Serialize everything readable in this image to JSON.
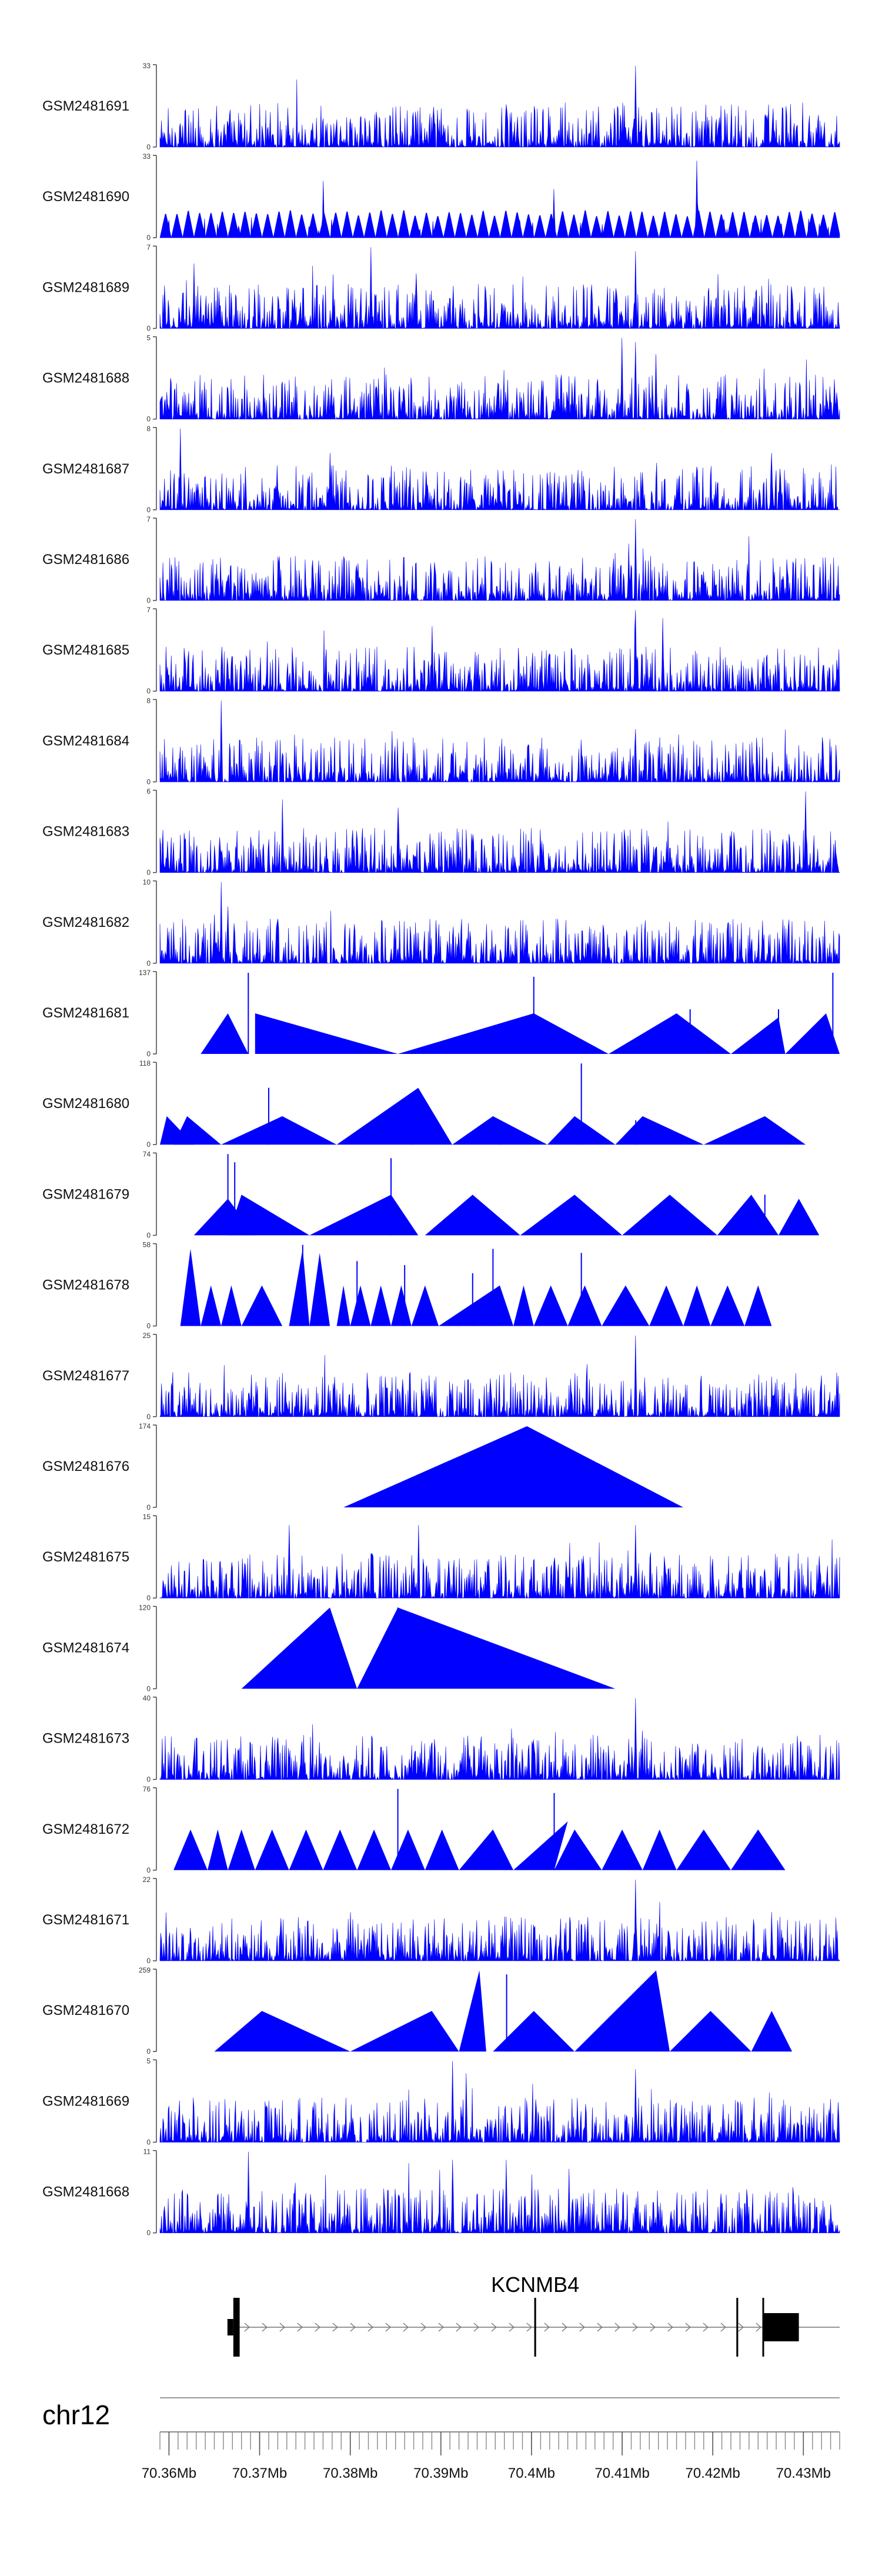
{
  "chart_data": {
    "type": "area",
    "colors": {
      "signal": "#0000ff",
      "axis": "#444444",
      "gene": "#000000",
      "genome_line": "#999999"
    },
    "tracks": [
      {
        "name": "GSM2481691",
        "ymax": "33",
        "ymin": "0",
        "style": "dense",
        "peaks": [
          [
            0.28,
            0.35
          ],
          [
            0.7,
            1.0
          ],
          [
            0.47,
            0.12
          ]
        ]
      },
      {
        "name": "GSM2481690",
        "ymax": "33",
        "ymin": "0",
        "style": "triangles",
        "n": 60,
        "peaks": [
          [
            0.79,
            0.95
          ],
          [
            0.24,
            0.7
          ],
          [
            0.58,
            0.6
          ]
        ]
      },
      {
        "name": "GSM2481689",
        "ymax": "7",
        "ymin": "0",
        "style": "dense",
        "peaks": [
          [
            0.31,
            1.0
          ],
          [
            0.7,
            0.95
          ],
          [
            0.05,
            0.8
          ]
        ]
      },
      {
        "name": "GSM2481688",
        "ymax": "5",
        "ymin": "0",
        "style": "dense",
        "peaks": [
          [
            0.68,
            1.0
          ],
          [
            0.7,
            0.95
          ],
          [
            0.73,
            0.8
          ]
        ]
      },
      {
        "name": "GSM2481687",
        "ymax": "8",
        "ymin": "0",
        "style": "dense",
        "peaks": [
          [
            0.03,
            1.0
          ],
          [
            0.25,
            0.7
          ],
          [
            0.9,
            0.7
          ]
        ]
      },
      {
        "name": "GSM2481686",
        "ymax": "7",
        "ymin": "0",
        "style": "dense",
        "peaks": [
          [
            0.7,
            1.0
          ],
          [
            0.69,
            0.7
          ],
          [
            0.12,
            0.4
          ]
        ]
      },
      {
        "name": "GSM2481685",
        "ymax": "7",
        "ymin": "0",
        "style": "dense",
        "peaks": [
          [
            0.7,
            1.0
          ],
          [
            0.4,
            0.8
          ],
          [
            0.74,
            0.9
          ]
        ]
      },
      {
        "name": "GSM2481684",
        "ymax": "8",
        "ymin": "0",
        "style": "dense",
        "peaks": [
          [
            0.09,
            1.0
          ],
          [
            0.7,
            0.65
          ],
          [
            0.72,
            0.5
          ]
        ]
      },
      {
        "name": "GSM2481683",
        "ymax": "6",
        "ymin": "0",
        "style": "dense",
        "peaks": [
          [
            0.95,
            1.0
          ],
          [
            0.18,
            0.9
          ],
          [
            0.35,
            0.8
          ]
        ]
      },
      {
        "name": "GSM2481682",
        "ymax": "10",
        "ymin": "0",
        "style": "dense",
        "peaks": [
          [
            0.09,
            1.0
          ],
          [
            0.1,
            0.7
          ],
          [
            0.08,
            0.6
          ]
        ]
      },
      {
        "name": "GSM2481681",
        "ymax": "137",
        "ymin": "0",
        "tris": [
          [
            0.06,
            0.13,
            0.1,
            0.5
          ],
          [
            0.14,
            0.35,
            0.14,
            0.5
          ],
          [
            0.35,
            0.66,
            0.55,
            0.5
          ],
          [
            0.66,
            0.84,
            0.76,
            0.5
          ],
          [
            0.84,
            0.92,
            0.91,
            0.45
          ],
          [
            0.92,
            1.0,
            0.98,
            0.5
          ]
        ],
        "spikes": [
          [
            0.13,
            1.0
          ],
          [
            0.55,
            0.95
          ],
          [
            0.78,
            0.55
          ],
          [
            0.91,
            0.55
          ],
          [
            0.99,
            1.0
          ]
        ]
      },
      {
        "name": "GSM2481680",
        "ymax": "118",
        "ymin": "0",
        "tris": [
          [
            0.0,
            0.05,
            0.01,
            0.35
          ],
          [
            0.02,
            0.09,
            0.04,
            0.35
          ],
          [
            0.09,
            0.26,
            0.18,
            0.35
          ],
          [
            0.26,
            0.43,
            0.38,
            0.7
          ],
          [
            0.43,
            0.57,
            0.49,
            0.35
          ],
          [
            0.57,
            0.67,
            0.61,
            0.35
          ],
          [
            0.67,
            0.8,
            0.71,
            0.35
          ],
          [
            0.8,
            0.95,
            0.89,
            0.35
          ]
        ],
        "spikes": [
          [
            0.16,
            0.7
          ],
          [
            0.37,
            0.45
          ],
          [
            0.62,
            1.0
          ],
          [
            0.5,
            0.3
          ],
          [
            0.7,
            0.3
          ]
        ]
      },
      {
        "name": "GSM2481679",
        "ymax": "74",
        "ymin": "0",
        "tris": [
          [
            0.05,
            0.14,
            0.1,
            0.45
          ],
          [
            0.1,
            0.22,
            0.12,
            0.5
          ],
          [
            0.22,
            0.38,
            0.34,
            0.5
          ],
          [
            0.39,
            0.53,
            0.46,
            0.5
          ],
          [
            0.53,
            0.68,
            0.61,
            0.5
          ],
          [
            0.68,
            0.82,
            0.75,
            0.5
          ],
          [
            0.82,
            0.91,
            0.87,
            0.5
          ],
          [
            0.91,
            0.97,
            0.94,
            0.45
          ]
        ],
        "spikes": [
          [
            0.1,
            1.0
          ],
          [
            0.11,
            0.9
          ],
          [
            0.34,
            0.95
          ],
          [
            0.89,
            0.5
          ]
        ]
      },
      {
        "name": "GSM2481678",
        "ymax": "58",
        "ymin": "0",
        "tris": [
          [
            0.03,
            0.06,
            0.045,
            0.95
          ],
          [
            0.06,
            0.09,
            0.075,
            0.5
          ],
          [
            0.09,
            0.12,
            0.105,
            0.5
          ],
          [
            0.12,
            0.18,
            0.15,
            0.5
          ],
          [
            0.19,
            0.22,
            0.21,
            0.95
          ],
          [
            0.22,
            0.25,
            0.235,
            0.9
          ],
          [
            0.26,
            0.28,
            0.27,
            0.5
          ],
          [
            0.28,
            0.31,
            0.295,
            0.5
          ],
          [
            0.31,
            0.34,
            0.325,
            0.5
          ],
          [
            0.34,
            0.37,
            0.355,
            0.5
          ],
          [
            0.37,
            0.41,
            0.39,
            0.5
          ],
          [
            0.41,
            0.52,
            0.5,
            0.5
          ],
          [
            0.52,
            0.55,
            0.535,
            0.5
          ],
          [
            0.55,
            0.6,
            0.575,
            0.5
          ],
          [
            0.6,
            0.65,
            0.625,
            0.5
          ],
          [
            0.65,
            0.72,
            0.685,
            0.5
          ],
          [
            0.72,
            0.77,
            0.745,
            0.5
          ],
          [
            0.77,
            0.81,
            0.79,
            0.5
          ],
          [
            0.81,
            0.86,
            0.835,
            0.5
          ],
          [
            0.86,
            0.9,
            0.88,
            0.5
          ]
        ],
        "spikes": [
          [
            0.21,
            1.0
          ],
          [
            0.29,
            0.8
          ],
          [
            0.36,
            0.75
          ],
          [
            0.46,
            0.65
          ],
          [
            0.49,
            0.95
          ],
          [
            0.62,
            0.9
          ]
        ]
      },
      {
        "name": "GSM2481677",
        "ymax": "25",
        "ymin": "0",
        "style": "dense",
        "peaks": [
          [
            0.7,
            1.0
          ],
          [
            0.4,
            0.3
          ],
          [
            0.2,
            0.25
          ]
        ]
      },
      {
        "name": "GSM2481676",
        "ymax": "174",
        "ymin": "0",
        "tris": [
          [
            0.27,
            0.77,
            0.54,
            1.0
          ]
        ],
        "spikes": []
      },
      {
        "name": "GSM2481675",
        "ymax": "15",
        "ymin": "0",
        "style": "dense",
        "peaks": [
          [
            0.19,
            0.9
          ],
          [
            0.38,
            0.9
          ],
          [
            0.7,
            0.9
          ]
        ]
      },
      {
        "name": "GSM2481674",
        "ymax": "120",
        "ymin": "0",
        "tris": [
          [
            0.12,
            0.29,
            0.25,
            1.0
          ],
          [
            0.29,
            0.67,
            0.35,
            1.0
          ]
        ],
        "spikes": [
          [
            0.35,
            1.0
          ]
        ]
      },
      {
        "name": "GSM2481673",
        "ymax": "40",
        "ymin": "0",
        "style": "dense",
        "peaks": [
          [
            0.7,
            1.0
          ],
          [
            0.71,
            0.6
          ],
          [
            0.69,
            0.5
          ]
        ]
      },
      {
        "name": "GSM2481672",
        "ymax": "76",
        "ymin": "0",
        "tris": [
          [
            0.02,
            0.07,
            0.045,
            0.5
          ],
          [
            0.07,
            0.1,
            0.085,
            0.5
          ],
          [
            0.1,
            0.14,
            0.12,
            0.5
          ],
          [
            0.14,
            0.19,
            0.165,
            0.5
          ],
          [
            0.19,
            0.24,
            0.215,
            0.5
          ],
          [
            0.24,
            0.29,
            0.265,
            0.5
          ],
          [
            0.29,
            0.34,
            0.315,
            0.5
          ],
          [
            0.34,
            0.39,
            0.365,
            0.5
          ],
          [
            0.39,
            0.44,
            0.415,
            0.5
          ],
          [
            0.44,
            0.52,
            0.49,
            0.5
          ],
          [
            0.52,
            0.58,
            0.6,
            0.6
          ],
          [
            0.58,
            0.65,
            0.61,
            0.5
          ],
          [
            0.65,
            0.71,
            0.68,
            0.5
          ],
          [
            0.71,
            0.76,
            0.735,
            0.5
          ],
          [
            0.76,
            0.84,
            0.8,
            0.5
          ],
          [
            0.84,
            0.92,
            0.88,
            0.5
          ]
        ],
        "spikes": [
          [
            0.35,
            1.0
          ],
          [
            0.58,
            0.95
          ]
        ]
      },
      {
        "name": "GSM2481671",
        "ymax": "22",
        "ymin": "0",
        "style": "dense",
        "peaks": [
          [
            0.7,
            1.0
          ],
          [
            0.9,
            0.6
          ],
          [
            0.28,
            0.6
          ]
        ]
      },
      {
        "name": "GSM2481670",
        "ymax": "259",
        "ymin": "0",
        "tris": [
          [
            0.08,
            0.28,
            0.15,
            0.5
          ],
          [
            0.28,
            0.44,
            0.4,
            0.5
          ],
          [
            0.44,
            0.48,
            0.47,
            1.0
          ],
          [
            0.49,
            0.61,
            0.55,
            0.5
          ],
          [
            0.61,
            0.75,
            0.73,
            1.0
          ],
          [
            0.75,
            0.87,
            0.81,
            0.5
          ],
          [
            0.87,
            0.93,
            0.9,
            0.5
          ]
        ],
        "spikes": [
          [
            0.51,
            0.95
          ]
        ]
      },
      {
        "name": "GSM2481669",
        "ymax": "5",
        "ymin": "0",
        "style": "dense",
        "peaks": [
          [
            0.43,
            1.0
          ],
          [
            0.7,
            0.9
          ],
          [
            0.45,
            0.85
          ]
        ]
      },
      {
        "name": "GSM2481668",
        "ymax": "11",
        "ymin": "0",
        "style": "dense",
        "peaks": [
          [
            0.13,
            1.0
          ],
          [
            0.43,
            0.9
          ],
          [
            0.51,
            0.9
          ]
        ]
      }
    ],
    "gene": {
      "name": "KCNMB4",
      "strand": "+",
      "exons": [
        [
          70.3671,
          70.3678
        ],
        [
          70.4003,
          70.4005
        ],
        [
          70.4226,
          70.4228
        ],
        [
          70.4256,
          70.4295
        ]
      ]
    },
    "chromosome": "chr12",
    "x_range": [
      70.359,
      70.434
    ],
    "x_ticks": [
      {
        "value": 70.36,
        "label": "70.36Mb"
      },
      {
        "value": 70.37,
        "label": "70.37Mb"
      },
      {
        "value": 70.38,
        "label": "70.38Mb"
      },
      {
        "value": 70.39,
        "label": "70.39Mb"
      },
      {
        "value": 70.4,
        "label": "70.4Mb"
      },
      {
        "value": 70.41,
        "label": "70.41Mb"
      },
      {
        "value": 70.42,
        "label": "70.42Mb"
      },
      {
        "value": 70.43,
        "label": "70.43Mb"
      }
    ],
    "minor_tick_step": 0.001
  }
}
